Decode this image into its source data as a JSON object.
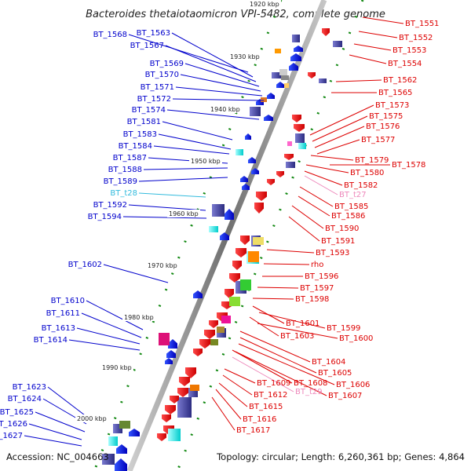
{
  "title": "Bacteroides thetaiotaomicron VPI-5482, complete genome",
  "footer": {
    "accession": "Accession: NC_004663",
    "summary": "Topology: circular; Length: 6,260,361 bp; Genes: 4,864"
  },
  "colors": {
    "left_label": "#0000cc",
    "right_label": "#dd0000",
    "trna": "#33bbdd",
    "trna_right": "#ee88bb",
    "backbone": "#8c8c8c",
    "tick": "#118811"
  },
  "scale_marks": [
    "1920 kbp",
    "1930 kbp",
    "1940 kbp",
    "1950 kbp",
    "1960 kbp",
    "1970 kbp",
    "1980 kbp",
    "1990 kbp",
    "2000 kbp"
  ],
  "left_labels": [
    {
      "text": "BT_1568",
      "kind": "gene"
    },
    {
      "text": "BT_1563",
      "kind": "gene"
    },
    {
      "text": "BT_1567",
      "kind": "gene"
    },
    {
      "text": "BT_1569",
      "kind": "gene"
    },
    {
      "text": "BT_1570",
      "kind": "gene"
    },
    {
      "text": "BT_1571",
      "kind": "gene"
    },
    {
      "text": "BT_1572",
      "kind": "gene"
    },
    {
      "text": "BT_1574",
      "kind": "gene"
    },
    {
      "text": "BT_1581",
      "kind": "gene"
    },
    {
      "text": "BT_1583",
      "kind": "gene"
    },
    {
      "text": "BT_1584",
      "kind": "gene"
    },
    {
      "text": "BT_1587",
      "kind": "gene"
    },
    {
      "text": "BT_1588",
      "kind": "gene"
    },
    {
      "text": "BT_1589",
      "kind": "gene"
    },
    {
      "text": "BT_t28",
      "kind": "trna"
    },
    {
      "text": "BT_1592",
      "kind": "gene"
    },
    {
      "text": "BT_1594",
      "kind": "gene"
    },
    {
      "text": "BT_1602",
      "kind": "gene"
    },
    {
      "text": "BT_1610",
      "kind": "gene"
    },
    {
      "text": "BT_1611",
      "kind": "gene"
    },
    {
      "text": "BT_1613",
      "kind": "gene"
    },
    {
      "text": "BT_1614",
      "kind": "gene"
    },
    {
      "text": "BT_1623",
      "kind": "gene"
    },
    {
      "text": "BT_1624",
      "kind": "gene"
    },
    {
      "text": "BT_1625",
      "kind": "gene"
    },
    {
      "text": "BT_1626",
      "kind": "gene"
    },
    {
      "text": "BT_1627",
      "kind": "gene"
    }
  ],
  "right_labels": [
    {
      "text": "BT_1551",
      "kind": "gene"
    },
    {
      "text": "BT_1552",
      "kind": "gene"
    },
    {
      "text": "BT_1553",
      "kind": "gene"
    },
    {
      "text": "BT_1554",
      "kind": "gene"
    },
    {
      "text": "BT_1562",
      "kind": "gene"
    },
    {
      "text": "BT_1565",
      "kind": "gene"
    },
    {
      "text": "BT_1573",
      "kind": "gene"
    },
    {
      "text": "BT_1575",
      "kind": "gene"
    },
    {
      "text": "BT_1576",
      "kind": "gene"
    },
    {
      "text": "BT_1577",
      "kind": "gene"
    },
    {
      "text": "BT_1579",
      "kind": "gene"
    },
    {
      "text": "BT_1578",
      "kind": "gene"
    },
    {
      "text": "BT_1580",
      "kind": "gene"
    },
    {
      "text": "BT_1582",
      "kind": "gene"
    },
    {
      "text": "BT_t27",
      "kind": "trna"
    },
    {
      "text": "BT_1585",
      "kind": "gene"
    },
    {
      "text": "BT_1586",
      "kind": "gene"
    },
    {
      "text": "BT_1590",
      "kind": "gene"
    },
    {
      "text": "BT_1591",
      "kind": "gene"
    },
    {
      "text": "BT_1593",
      "kind": "gene"
    },
    {
      "text": "rho",
      "kind": "gene"
    },
    {
      "text": "BT_1596",
      "kind": "gene"
    },
    {
      "text": "BT_1597",
      "kind": "gene"
    },
    {
      "text": "BT_1598",
      "kind": "gene"
    },
    {
      "text": "BT_1601",
      "kind": "gene"
    },
    {
      "text": "BT_1599",
      "kind": "gene"
    },
    {
      "text": "BT_1603",
      "kind": "gene"
    },
    {
      "text": "BT_1600",
      "kind": "gene"
    },
    {
      "text": "BT_1604",
      "kind": "gene"
    },
    {
      "text": "BT_1605",
      "kind": "gene"
    },
    {
      "text": "BT_1609",
      "kind": "gene"
    },
    {
      "text": "BT_1608",
      "kind": "gene"
    },
    {
      "text": "BT_1606",
      "kind": "gene"
    },
    {
      "text": "BT_1612",
      "kind": "gene"
    },
    {
      "text": "BT_t29",
      "kind": "trna"
    },
    {
      "text": "BT_1607",
      "kind": "gene"
    },
    {
      "text": "BT_1615",
      "kind": "gene"
    },
    {
      "text": "BT_1616",
      "kind": "gene"
    },
    {
      "text": "BT_1617",
      "kind": "gene"
    }
  ]
}
